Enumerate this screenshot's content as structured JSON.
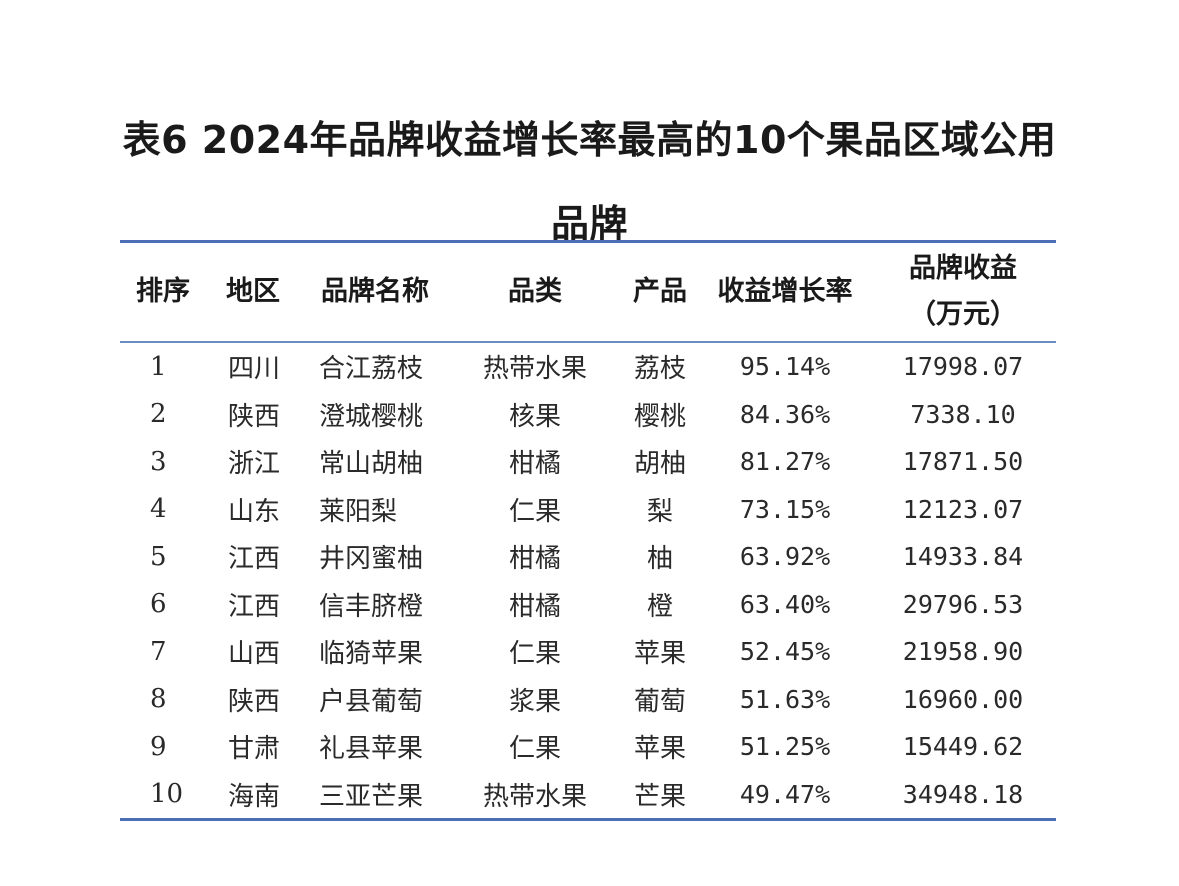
{
  "title": {
    "line1": "表6 2024年品牌收益增长率最高的10个果品区域公用",
    "line2": "品牌"
  },
  "table": {
    "headers": {
      "rank": "排序",
      "region": "地区",
      "brand": "品牌名称",
      "category": "品类",
      "product": "产品",
      "growth": "收益增长率",
      "revenue_line1": "品牌收益",
      "revenue_line2": "（万元）"
    },
    "rows": [
      {
        "rank": "1",
        "region": "四川",
        "brand": "合江荔枝",
        "category": "热带水果",
        "product": "荔枝",
        "growth": "95.14%",
        "revenue": "17998.07"
      },
      {
        "rank": "2",
        "region": "陕西",
        "brand": "澄城樱桃",
        "category": "核果",
        "product": "樱桃",
        "growth": "84.36%",
        "revenue": "7338.10"
      },
      {
        "rank": "3",
        "region": "浙江",
        "brand": "常山胡柚",
        "category": "柑橘",
        "product": "胡柚",
        "growth": "81.27%",
        "revenue": "17871.50"
      },
      {
        "rank": "4",
        "region": "山东",
        "brand": "莱阳梨",
        "category": "仁果",
        "product": "梨",
        "growth": "73.15%",
        "revenue": "12123.07"
      },
      {
        "rank": "5",
        "region": "江西",
        "brand": "井冈蜜柚",
        "category": "柑橘",
        "product": "柚",
        "growth": "63.92%",
        "revenue": "14933.84"
      },
      {
        "rank": "6",
        "region": "江西",
        "brand": "信丰脐橙",
        "category": "柑橘",
        "product": "橙",
        "growth": "63.40%",
        "revenue": "29796.53"
      },
      {
        "rank": "7",
        "region": "山西",
        "brand": "临猗苹果",
        "category": "仁果",
        "product": "苹果",
        "growth": "52.45%",
        "revenue": "21958.90"
      },
      {
        "rank": "8",
        "region": "陕西",
        "brand": "户县葡萄",
        "category": "浆果",
        "product": "葡萄",
        "growth": "51.63%",
        "revenue": "16960.00"
      },
      {
        "rank": "9",
        "region": "甘肃",
        "brand": "礼县苹果",
        "category": "仁果",
        "product": "苹果",
        "growth": "51.25%",
        "revenue": "15449.62"
      },
      {
        "rank": "10",
        "region": "海南",
        "brand": "三亚芒果",
        "category": "热带水果",
        "product": "芒果",
        "growth": "49.47%",
        "revenue": "34948.18"
      }
    ]
  },
  "colors": {
    "rule": "#4a6fb5",
    "text": "#1a1a1a"
  }
}
